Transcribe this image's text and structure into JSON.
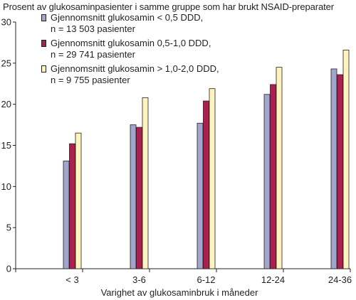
{
  "chart_data": {
    "type": "bar",
    "ylabel": "Prosent av glukosaminpasienter i samme gruppe som har brukt NSAID-preparater",
    "xlabel": "Varighet av glukosaminbruk i måneder",
    "categories": [
      "< 3",
      "3-6",
      "6-12",
      "12-24",
      "24-36"
    ],
    "ylim": [
      0,
      30
    ],
    "yticks": [
      "0",
      "5",
      "10",
      "15",
      "20",
      "25",
      "30"
    ],
    "ytick_values": [
      0,
      5,
      10,
      15,
      20,
      25,
      30
    ],
    "grid": false,
    "legend_placement": "top-left",
    "series": [
      {
        "name": "Gjennomsnitt glukosamin < 0,5 DDD,",
        "name_line2": "n = 13 503 pasienter",
        "color": "#a3a6cc",
        "values": [
          13.1,
          17.5,
          17.7,
          21.2,
          24.3
        ]
      },
      {
        "name": "Gjennomsnitt glukosamin 0,5-1,0 DDD,",
        "name_line2": "n = 29 741 pasienter",
        "color": "#a8224f",
        "values": [
          15.2,
          17.2,
          20.4,
          22.4,
          23.6
        ]
      },
      {
        "name": "Gjennomsnitt glukosamin > 1,0-2,0 DDD,",
        "name_line2": "n = 9 755 pasienter",
        "color": "#fdf4bf",
        "values": [
          16.5,
          20.8,
          21.9,
          24.5,
          26.6
        ]
      }
    ]
  }
}
